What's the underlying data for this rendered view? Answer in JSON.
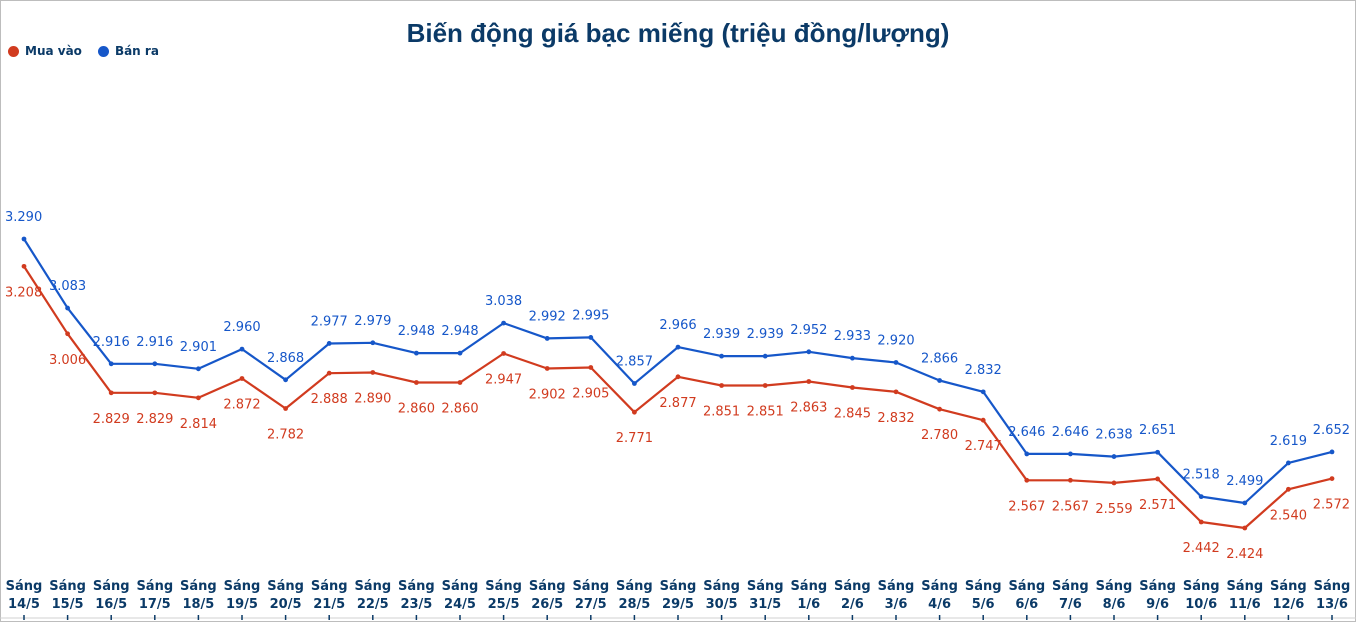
{
  "chart_data": {
    "type": "line",
    "title": "Biến động giá bạc miếng (triệu đồng/lượng)",
    "xlabel": "",
    "ylabel": "",
    "legend_position": "top-left",
    "grid": false,
    "categories": [
      [
        "Sáng",
        "14/5"
      ],
      [
        "Sáng",
        "15/5"
      ],
      [
        "Sáng",
        "16/5"
      ],
      [
        "Sáng",
        "17/5"
      ],
      [
        "Sáng",
        "18/5"
      ],
      [
        "Sáng",
        "19/5"
      ],
      [
        "Sáng",
        "20/5"
      ],
      [
        "Sáng",
        "21/5"
      ],
      [
        "Sáng",
        "22/5"
      ],
      [
        "Sáng",
        "23/5"
      ],
      [
        "Sáng",
        "24/5"
      ],
      [
        "Sáng",
        "25/5"
      ],
      [
        "Sáng",
        "26/5"
      ],
      [
        "Sáng",
        "27/5"
      ],
      [
        "Sáng",
        "28/5"
      ],
      [
        "Sáng",
        "29/5"
      ],
      [
        "Sáng",
        "30/5"
      ],
      [
        "Sáng",
        "31/5"
      ],
      [
        "Sáng",
        "1/6"
      ],
      [
        "Sáng",
        "2/6"
      ],
      [
        "Sáng",
        "3/6"
      ],
      [
        "Sáng",
        "4/6"
      ],
      [
        "Sáng",
        "5/6"
      ],
      [
        "Sáng",
        "6/6"
      ],
      [
        "Sáng",
        "7/6"
      ],
      [
        "Sáng",
        "8/6"
      ],
      [
        "Sáng",
        "9/6"
      ],
      [
        "Sáng",
        "10/6"
      ],
      [
        "Sáng",
        "11/6"
      ],
      [
        "Sáng",
        "12/6"
      ],
      [
        "Sáng",
        "13/6"
      ]
    ],
    "series": [
      {
        "name": "Mua vào",
        "color": "#d13b1f",
        "values": [
          3.208,
          3.006,
          2.829,
          2.829,
          2.814,
          2.872,
          2.782,
          2.888,
          2.89,
          2.86,
          2.86,
          2.947,
          2.902,
          2.905,
          2.771,
          2.877,
          2.851,
          2.851,
          2.863,
          2.845,
          2.832,
          2.78,
          2.747,
          2.567,
          2.567,
          2.559,
          2.571,
          2.442,
          2.424,
          2.54,
          2.572
        ],
        "labels": [
          "3.208",
          "3.006",
          "2.829",
          "2.829",
          "2.814",
          "2.872",
          "2.782",
          "2.888",
          "2.890",
          "2.860",
          "2.860",
          "2.947",
          "2.902",
          "2.905",
          "2.771",
          "2.877",
          "2.851",
          "2.851",
          "2.863",
          "2.845",
          "2.832",
          "2.780",
          "2.747",
          "2.567",
          "2.567",
          "2.559",
          "2.571",
          "2.442",
          "2.424",
          "2.540",
          "2.572"
        ]
      },
      {
        "name": "Bán ra",
        "color": "#1657c9",
        "values": [
          3.29,
          3.083,
          2.916,
          2.916,
          2.901,
          2.96,
          2.868,
          2.977,
          2.979,
          2.948,
          2.948,
          3.038,
          2.992,
          2.995,
          2.857,
          2.966,
          2.939,
          2.939,
          2.952,
          2.933,
          2.92,
          2.866,
          2.832,
          2.646,
          2.646,
          2.638,
          2.651,
          2.518,
          2.499,
          2.619,
          2.652
        ],
        "labels": [
          "3.290",
          "3.083",
          "2.916",
          "2.916",
          "2.901",
          "2.960",
          "2.868",
          "2.977",
          "2.979",
          "2.948",
          "2.948",
          "3.038",
          "2.992",
          "2.995",
          "2.857",
          "2.966",
          "2.939",
          "2.939",
          "2.952",
          "2.933",
          "2.920",
          "2.866",
          "2.832",
          "2.646",
          "2.646",
          "2.638",
          "2.651",
          "2.518",
          "2.499",
          "2.619",
          "2.652"
        ]
      }
    ]
  }
}
